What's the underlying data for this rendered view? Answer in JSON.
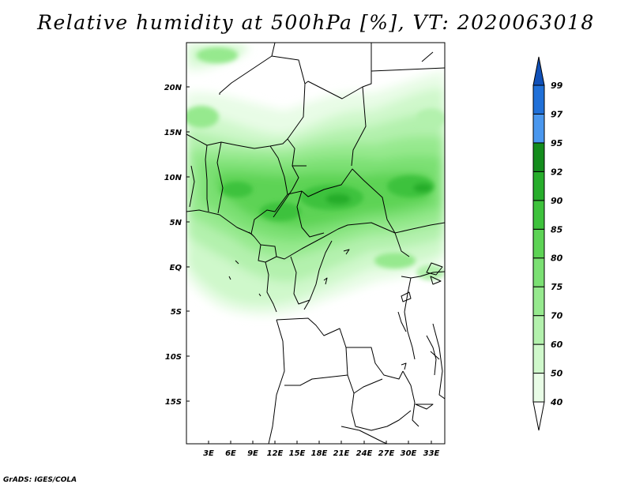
{
  "title": "Relative humidity at 500hPa [%], VT: 2020063018",
  "credit": "GrADS: IGES/COLA",
  "map": {
    "lat_labels": [
      "20N",
      "15N",
      "10N",
      "5N",
      "EQ",
      "5S",
      "10S",
      "15S"
    ],
    "lon_labels": [
      "3E",
      "6E",
      "9E",
      "12E",
      "15E",
      "18E",
      "21E",
      "24E",
      "27E",
      "30E",
      "33E"
    ]
  },
  "colorbar": {
    "levels": [
      "40",
      "50",
      "60",
      "70",
      "75",
      "80",
      "85",
      "90",
      "92",
      "95",
      "97",
      "99"
    ],
    "colors": [
      "#ffffff",
      "#e8fce6",
      "#cff8cb",
      "#b3f1ad",
      "#96e98e",
      "#7be073",
      "#5dd355",
      "#3ec23c",
      "#27ad2b",
      "#138c1c",
      "#4a97ee",
      "#2070d8",
      "#1050b8"
    ]
  }
}
